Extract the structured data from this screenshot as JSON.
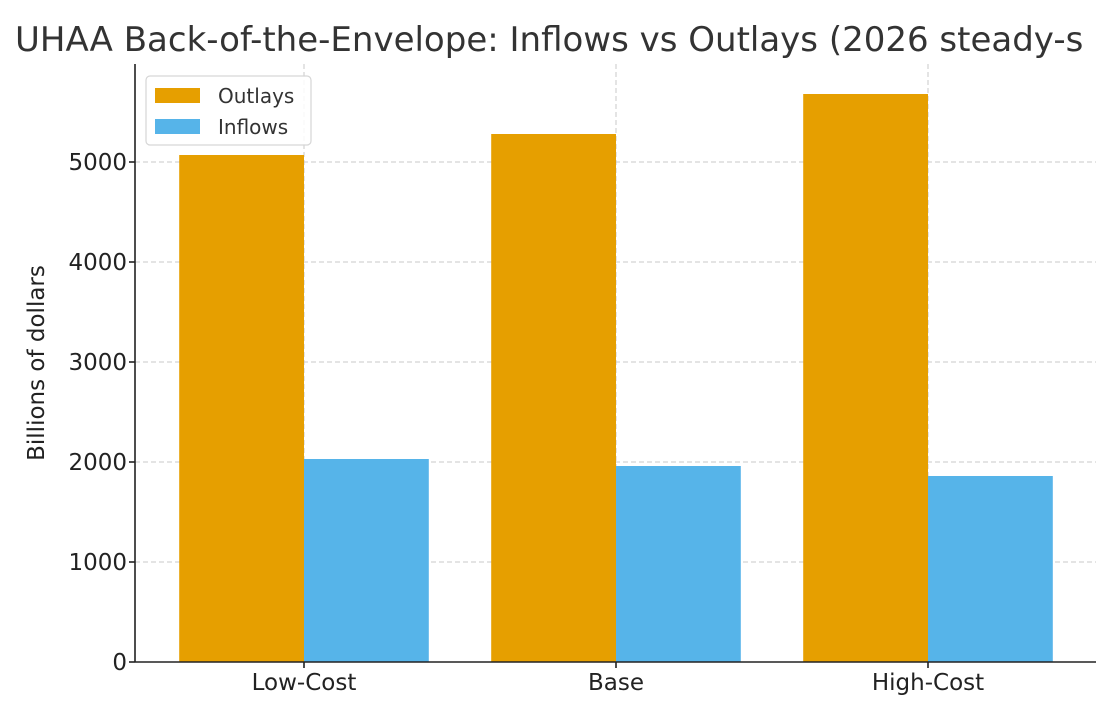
{
  "chart_data": {
    "type": "bar",
    "title": "UHAA Back-of-the-Envelope: Inflows vs Outlays (2026 steady-s",
    "xlabel": "",
    "ylabel": "Billions of dollars",
    "categories": [
      "Low-Cost",
      "Base",
      "High-Cost"
    ],
    "series": [
      {
        "name": "Outlays",
        "color": "#E69F00",
        "values": [
          5070,
          5280,
          5680
        ]
      },
      {
        "name": "Inflows",
        "color": "#56B4E9",
        "values": [
          2030,
          1960,
          1860
        ]
      }
    ],
    "ylim": [
      0,
      5980
    ],
    "yticks": [
      0,
      1000,
      2000,
      3000,
      4000,
      5000
    ],
    "grid": true,
    "legend_position": "top-left"
  }
}
